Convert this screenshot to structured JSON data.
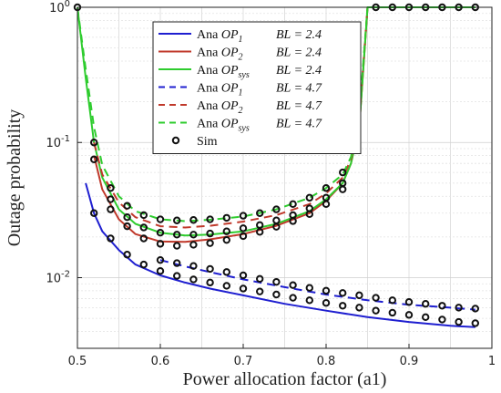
{
  "chart_data": {
    "type": "line",
    "title": "",
    "xlabel": "Power allocation factor (a1)",
    "ylabel": "Outage probability",
    "xlim": [
      0.5,
      1.0
    ],
    "ylim": [
      0.003,
      1.0
    ],
    "yscale": "log",
    "grid": true,
    "legend_position": "top-center",
    "x_ticks": [
      "0.5",
      "0.6",
      "0.7",
      "0.8",
      "0.9",
      "1"
    ],
    "y_ticks": [
      {
        "value": 1,
        "label": "10^0"
      },
      {
        "value": 0.1,
        "label": "10^-1"
      },
      {
        "value": 0.01,
        "label": "10^-2"
      }
    ],
    "series": [
      {
        "name": "Ana OP1 BL = 2.4",
        "color": "#1f1fd0",
        "style": "solid",
        "x": [
          0.51,
          0.52,
          0.53,
          0.55,
          0.57,
          0.6,
          0.63,
          0.66,
          0.7,
          0.75,
          0.8,
          0.85,
          0.9,
          0.95,
          0.98
        ],
        "y": [
          0.05,
          0.03,
          0.022,
          0.016,
          0.0125,
          0.0104,
          0.0092,
          0.0083,
          0.0074,
          0.0064,
          0.0057,
          0.0051,
          0.0047,
          0.0044,
          0.0043
        ]
      },
      {
        "name": "Ana OP2 BL = 2.4",
        "color": "#c0392b",
        "style": "solid",
        "x": [
          0.52,
          0.53,
          0.55,
          0.57,
          0.6,
          0.63,
          0.66,
          0.7,
          0.74,
          0.78,
          0.8,
          0.82,
          0.83,
          0.84,
          0.85
        ],
        "y": [
          0.08,
          0.045,
          0.027,
          0.021,
          0.0185,
          0.0184,
          0.0192,
          0.021,
          0.0242,
          0.03,
          0.037,
          0.05,
          0.07,
          0.13,
          1.0
        ]
      },
      {
        "name": "Ana OPsys BL = 2.4",
        "color": "#2ecc2e",
        "style": "solid",
        "x": [
          0.5,
          0.51,
          0.52,
          0.53,
          0.55,
          0.57,
          0.6,
          0.63,
          0.66,
          0.7,
          0.74,
          0.78,
          0.8,
          0.82,
          0.83,
          0.84,
          0.85,
          0.9,
          0.95,
          0.98
        ],
        "y": [
          1.0,
          0.3,
          0.1,
          0.055,
          0.032,
          0.025,
          0.0215,
          0.0205,
          0.0208,
          0.022,
          0.025,
          0.031,
          0.038,
          0.05,
          0.07,
          0.13,
          1.0,
          1.0,
          1.0,
          1.0
        ]
      },
      {
        "name": "Ana OP1 BL = 4.7",
        "color": "#1f1fd0",
        "style": "dashed",
        "x": [
          0.6,
          0.63,
          0.66,
          0.7,
          0.75,
          0.8,
          0.85,
          0.9,
          0.95,
          0.98
        ],
        "y": [
          0.0135,
          0.0121,
          0.011,
          0.0097,
          0.0085,
          0.0075,
          0.0068,
          0.0063,
          0.006,
          0.0058
        ]
      },
      {
        "name": "Ana OP2 BL = 4.7",
        "color": "#c0392b",
        "style": "dashed",
        "x": [
          0.52,
          0.53,
          0.55,
          0.57,
          0.6,
          0.63,
          0.66,
          0.7,
          0.74,
          0.78,
          0.8,
          0.82,
          0.83,
          0.84,
          0.85
        ],
        "y": [
          0.1,
          0.058,
          0.036,
          0.028,
          0.024,
          0.0235,
          0.0242,
          0.026,
          0.029,
          0.035,
          0.042,
          0.055,
          0.075,
          0.15,
          1.0
        ]
      },
      {
        "name": "Ana OPsys BL = 4.7",
        "color": "#2ecc2e",
        "style": "dashed",
        "x": [
          0.5,
          0.51,
          0.52,
          0.53,
          0.55,
          0.57,
          0.6,
          0.63,
          0.66,
          0.7,
          0.74,
          0.78,
          0.8,
          0.82,
          0.83,
          0.84,
          0.85,
          0.9,
          0.95,
          0.98
        ],
        "y": [
          1.0,
          0.35,
          0.13,
          0.068,
          0.04,
          0.031,
          0.027,
          0.0262,
          0.0268,
          0.0283,
          0.032,
          0.039,
          0.046,
          0.058,
          0.078,
          0.16,
          1.0,
          1.0,
          1.0,
          1.0
        ]
      },
      {
        "name": "Sim",
        "color": "#111111",
        "style": "markers",
        "points": [
          {
            "x": 0.5,
            "y": 1.0
          },
          {
            "x": 0.52,
            "y": 0.1
          },
          {
            "x": 0.54,
            "y": 0.046
          },
          {
            "x": 0.56,
            "y": 0.034
          },
          {
            "x": 0.58,
            "y": 0.029
          },
          {
            "x": 0.6,
            "y": 0.027
          },
          {
            "x": 0.62,
            "y": 0.0265
          },
          {
            "x": 0.64,
            "y": 0.0267
          },
          {
            "x": 0.66,
            "y": 0.027
          },
          {
            "x": 0.68,
            "y": 0.0277
          },
          {
            "x": 0.7,
            "y": 0.0287
          },
          {
            "x": 0.72,
            "y": 0.03
          },
          {
            "x": 0.74,
            "y": 0.032
          },
          {
            "x": 0.76,
            "y": 0.035
          },
          {
            "x": 0.78,
            "y": 0.039
          },
          {
            "x": 0.8,
            "y": 0.046
          },
          {
            "x": 0.82,
            "y": 0.06
          },
          {
            "x": 0.52,
            "y": 0.075
          },
          {
            "x": 0.54,
            "y": 0.038
          },
          {
            "x": 0.56,
            "y": 0.028
          },
          {
            "x": 0.58,
            "y": 0.0235
          },
          {
            "x": 0.6,
            "y": 0.0215
          },
          {
            "x": 0.62,
            "y": 0.0208
          },
          {
            "x": 0.64,
            "y": 0.0208
          },
          {
            "x": 0.66,
            "y": 0.0212
          },
          {
            "x": 0.68,
            "y": 0.022
          },
          {
            "x": 0.7,
            "y": 0.0232
          },
          {
            "x": 0.72,
            "y": 0.0245
          },
          {
            "x": 0.74,
            "y": 0.0265
          },
          {
            "x": 0.76,
            "y": 0.029
          },
          {
            "x": 0.78,
            "y": 0.0325
          },
          {
            "x": 0.8,
            "y": 0.039
          },
          {
            "x": 0.82,
            "y": 0.05
          },
          {
            "x": 0.54,
            "y": 0.032
          },
          {
            "x": 0.56,
            "y": 0.024
          },
          {
            "x": 0.58,
            "y": 0.0195
          },
          {
            "x": 0.6,
            "y": 0.0178
          },
          {
            "x": 0.62,
            "y": 0.0172
          },
          {
            "x": 0.64,
            "y": 0.0175
          },
          {
            "x": 0.66,
            "y": 0.018
          },
          {
            "x": 0.68,
            "y": 0.019
          },
          {
            "x": 0.7,
            "y": 0.0203
          },
          {
            "x": 0.72,
            "y": 0.0218
          },
          {
            "x": 0.74,
            "y": 0.0238
          },
          {
            "x": 0.76,
            "y": 0.0262
          },
          {
            "x": 0.78,
            "y": 0.0295
          },
          {
            "x": 0.8,
            "y": 0.035
          },
          {
            "x": 0.82,
            "y": 0.045
          },
          {
            "x": 0.52,
            "y": 0.03
          },
          {
            "x": 0.54,
            "y": 0.0195
          },
          {
            "x": 0.56,
            "y": 0.0148
          },
          {
            "x": 0.58,
            "y": 0.0125
          },
          {
            "x": 0.6,
            "y": 0.0112
          },
          {
            "x": 0.62,
            "y": 0.0103
          },
          {
            "x": 0.64,
            "y": 0.0097
          },
          {
            "x": 0.66,
            "y": 0.0092
          },
          {
            "x": 0.68,
            "y": 0.0087
          },
          {
            "x": 0.7,
            "y": 0.0083
          },
          {
            "x": 0.72,
            "y": 0.0079
          },
          {
            "x": 0.74,
            "y": 0.0075
          },
          {
            "x": 0.76,
            "y": 0.0071
          },
          {
            "x": 0.78,
            "y": 0.0068
          },
          {
            "x": 0.8,
            "y": 0.0065
          },
          {
            "x": 0.82,
            "y": 0.0062
          },
          {
            "x": 0.84,
            "y": 0.006
          },
          {
            "x": 0.86,
            "y": 0.0057
          },
          {
            "x": 0.88,
            "y": 0.0055
          },
          {
            "x": 0.9,
            "y": 0.0053
          },
          {
            "x": 0.92,
            "y": 0.0051
          },
          {
            "x": 0.94,
            "y": 0.0049
          },
          {
            "x": 0.96,
            "y": 0.0047
          },
          {
            "x": 0.98,
            "y": 0.0046
          },
          {
            "x": 0.6,
            "y": 0.0135
          },
          {
            "x": 0.62,
            "y": 0.0128
          },
          {
            "x": 0.64,
            "y": 0.0122
          },
          {
            "x": 0.66,
            "y": 0.0116
          },
          {
            "x": 0.68,
            "y": 0.011
          },
          {
            "x": 0.7,
            "y": 0.0104
          },
          {
            "x": 0.72,
            "y": 0.0098
          },
          {
            "x": 0.74,
            "y": 0.0093
          },
          {
            "x": 0.76,
            "y": 0.0088
          },
          {
            "x": 0.78,
            "y": 0.0084
          },
          {
            "x": 0.8,
            "y": 0.008
          },
          {
            "x": 0.82,
            "y": 0.0077
          },
          {
            "x": 0.84,
            "y": 0.0074
          },
          {
            "x": 0.86,
            "y": 0.0071
          },
          {
            "x": 0.88,
            "y": 0.0068
          },
          {
            "x": 0.9,
            "y": 0.0066
          },
          {
            "x": 0.92,
            "y": 0.0064
          },
          {
            "x": 0.94,
            "y": 0.0062
          },
          {
            "x": 0.96,
            "y": 0.006
          },
          {
            "x": 0.98,
            "y": 0.0059
          },
          {
            "x": 0.835,
            "y": 0.15
          },
          {
            "x": 0.835,
            "y": 0.17
          },
          {
            "x": 0.86,
            "y": 1.0
          },
          {
            "x": 0.88,
            "y": 1.0
          },
          {
            "x": 0.9,
            "y": 1.0
          },
          {
            "x": 0.92,
            "y": 1.0
          },
          {
            "x": 0.94,
            "y": 1.0
          },
          {
            "x": 0.96,
            "y": 1.0
          },
          {
            "x": 0.98,
            "y": 1.0
          }
        ]
      }
    ],
    "legend": [
      {
        "prefix": "Ana ",
        "main": "OP",
        "sub": "1",
        "bl": "BL = 2.4",
        "color": "#1f1fd0",
        "style": "solid"
      },
      {
        "prefix": "Ana ",
        "main": "OP",
        "sub": "2",
        "bl": "BL = 2.4",
        "color": "#c0392b",
        "style": "solid"
      },
      {
        "prefix": "Ana ",
        "main": "OP",
        "sub": "sys",
        "bl": "BL = 2.4",
        "color": "#2ecc2e",
        "style": "solid"
      },
      {
        "prefix": "Ana ",
        "main": "OP",
        "sub": "1",
        "bl": "BL = 4.7",
        "color": "#1f1fd0",
        "style": "dashed"
      },
      {
        "prefix": "Ana ",
        "main": "OP",
        "sub": "2",
        "bl": "BL = 4.7",
        "color": "#c0392b",
        "style": "dashed"
      },
      {
        "prefix": "Ana ",
        "main": "OP",
        "sub": "sys",
        "bl": "BL = 4.7",
        "color": "#2ecc2e",
        "style": "dashed"
      },
      {
        "prefix": "Sim",
        "main": "",
        "sub": "",
        "bl": "",
        "color": "#111111",
        "style": "markers"
      }
    ]
  }
}
